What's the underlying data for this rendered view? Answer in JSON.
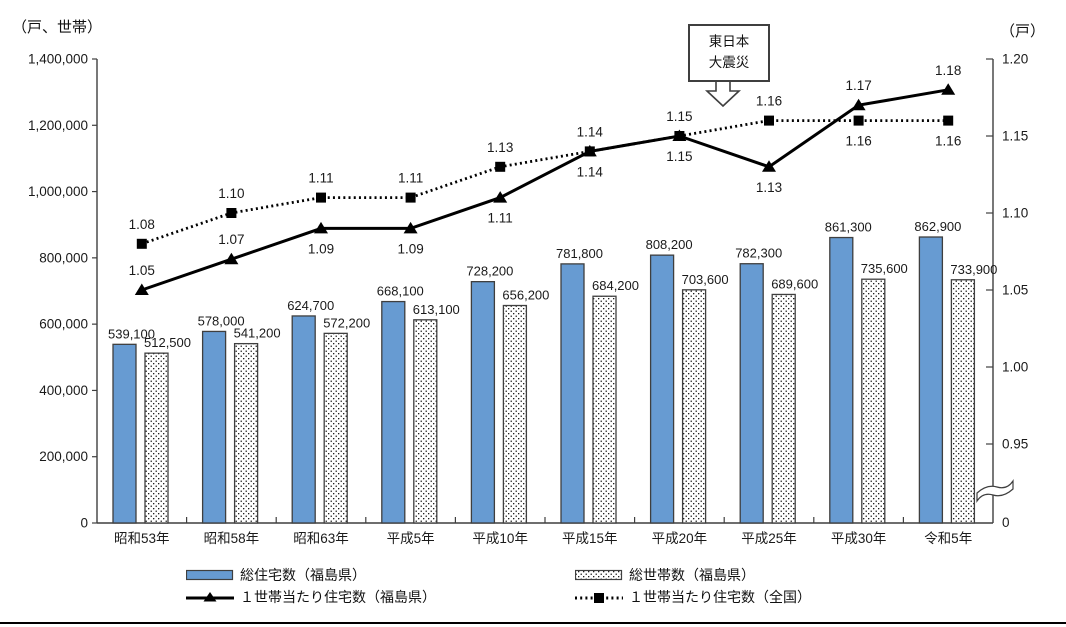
{
  "axis_units": {
    "left": "（戸、世帯）",
    "right": "（戸）"
  },
  "annotation": {
    "line1": "東日本",
    "line2": "大震災"
  },
  "colors": {
    "bar_blue": "#679bd2",
    "bar_stroke": "#3f3f3f",
    "line_black": "#000000",
    "text": "#1a1a1a"
  },
  "legend": {
    "items": [
      {
        "label": "総住宅数（福島県）",
        "swatch": "bar-solid"
      },
      {
        "label": "総世帯数（福島県）",
        "swatch": "bar-dotted"
      },
      {
        "label": "１世帯当たり住宅数（福島県）",
        "swatch": "line-triangle"
      },
      {
        "label": "１世帯当たり住宅数（全国）",
        "swatch": "line-square"
      }
    ]
  },
  "chart_data": {
    "type": "bar+line combo, dual axis",
    "categories": [
      "昭和53年",
      "昭和58年",
      "昭和63年",
      "平成5年",
      "平成10年",
      "平成15年",
      "平成20年",
      "平成25年",
      "平成30年",
      "令和5年"
    ],
    "bar_series": [
      {
        "name": "総住宅数（福島県）",
        "style": "solid-blue",
        "values": [
          539100,
          578000,
          624700,
          668100,
          728200,
          781800,
          808200,
          782300,
          861300,
          862900
        ]
      },
      {
        "name": "総世帯数（福島県）",
        "style": "dotted-white",
        "values": [
          512500,
          541200,
          572200,
          613100,
          656200,
          684200,
          703600,
          689600,
          735600,
          733900
        ]
      }
    ],
    "line_series": [
      {
        "name": "１世帯当たり住宅数（福島県）",
        "style": "solid-triangle",
        "values": [
          1.05,
          1.07,
          1.09,
          1.09,
          1.11,
          1.14,
          1.15,
          1.13,
          1.17,
          1.18
        ],
        "label_side": [
          "above",
          "above",
          "below",
          "below",
          "below",
          "below",
          "below",
          "below",
          "above",
          "above"
        ]
      },
      {
        "name": "１世帯当たり住宅数（全国）",
        "style": "dotted-square",
        "values": [
          1.08,
          1.1,
          1.11,
          1.11,
          1.13,
          1.14,
          1.15,
          1.16,
          1.16,
          1.16
        ],
        "label_side": [
          "above",
          "above",
          "above",
          "above",
          "above",
          "above",
          "above",
          "above",
          "below",
          "below"
        ]
      }
    ],
    "left_axis": {
      "label": "（戸、世帯）",
      "min": 0,
      "max": 1400000,
      "tick_step": 200000,
      "tick_labels": [
        "0",
        "200,000",
        "400,000",
        "600,000",
        "800,000",
        "1,000,000",
        "1,200,000",
        "1,400,000"
      ]
    },
    "right_axis": {
      "label": "（戸）",
      "ticks": [
        0.95,
        1.0,
        1.05,
        1.1,
        1.15,
        1.2
      ],
      "zero_label": "0",
      "axis_break": true
    },
    "grid": false,
    "legend_position": "bottom",
    "annotation": {
      "text": "東日本大震災",
      "points_between": [
        "平成20年",
        "平成25年"
      ]
    }
  }
}
